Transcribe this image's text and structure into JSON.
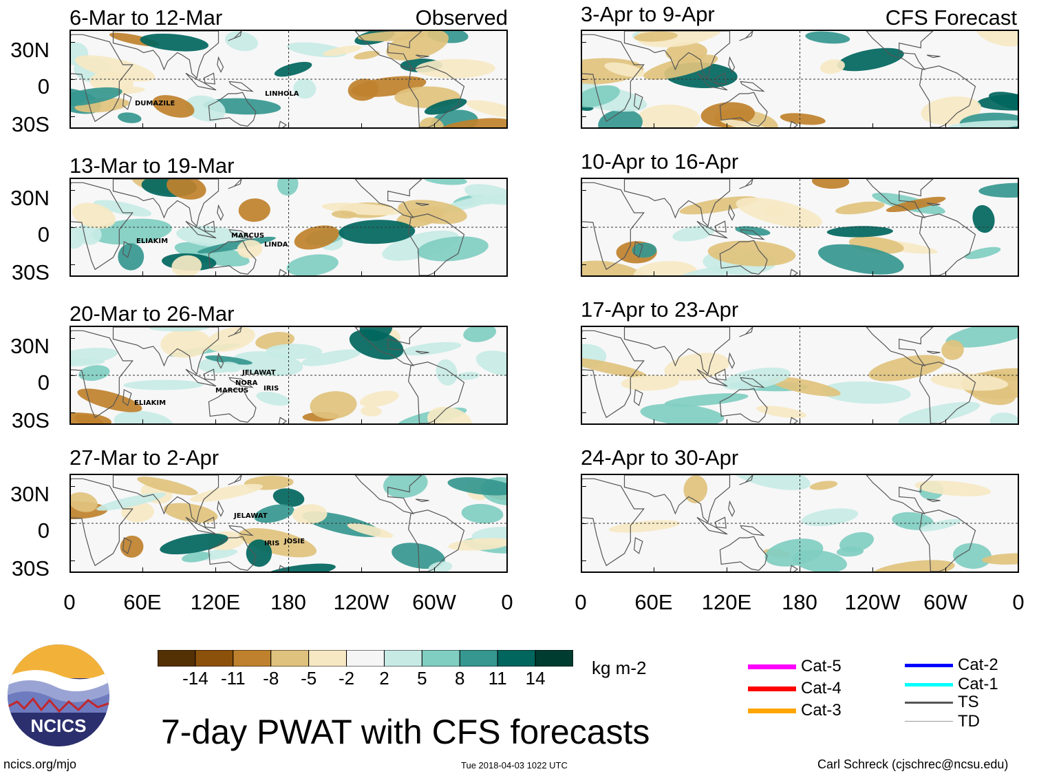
{
  "observed_label": "Observed",
  "forecast_label": "CFS Forecast",
  "lat_labels": [
    "30N",
    "0",
    "30S"
  ],
  "lon_labels": [
    "0",
    "60E",
    "120E",
    "180",
    "120W",
    "60W",
    "0"
  ],
  "panels_left": [
    {
      "title": "6-Mar to 12-Mar",
      "storms": [
        "DUMAZILE",
        "LINHOLA"
      ]
    },
    {
      "title": "13-Mar to 19-Mar",
      "storms": [
        "ELIAKIM",
        "MARCUS",
        "LINDA"
      ]
    },
    {
      "title": "20-Mar to 26-Mar",
      "storms": [
        "JELAWAT",
        "NORA",
        "MARCUS",
        "IRIS",
        "ELIAKIM"
      ]
    },
    {
      "title": "27-Mar to 2-Apr",
      "storms": [
        "JELAWAT",
        "IRIS",
        "JOSIE"
      ]
    }
  ],
  "panels_right": [
    {
      "title": "3-Apr to 9-Apr"
    },
    {
      "title": "10-Apr to 16-Apr"
    },
    {
      "title": "17-Apr to 23-Apr"
    },
    {
      "title": "24-Apr to 30-Apr"
    }
  ],
  "colorbar": {
    "units": "kg m-2",
    "ticks": [
      "-14",
      "-11",
      "-8",
      "-5",
      "-2",
      "2",
      "5",
      "8",
      "11",
      "14"
    ],
    "colors": [
      "#543005",
      "#8c510a",
      "#bf812d",
      "#dfc27d",
      "#f6e8c3",
      "#f5f5f5",
      "#c7eae5",
      "#80cdc1",
      "#35978f",
      "#01665e",
      "#003c30"
    ]
  },
  "storm_legend": [
    {
      "label": "Cat-5",
      "color": "#ff00ff"
    },
    {
      "label": "Cat-4",
      "color": "#ff0000"
    },
    {
      "label": "Cat-3",
      "color": "#ffa500"
    },
    {
      "label": "Cat-2",
      "color": "#0000ff"
    },
    {
      "label": "Cat-1",
      "color": "#00ffff"
    },
    {
      "label": "TS",
      "color": "#555555"
    },
    {
      "label": "TD",
      "color": "#999999"
    }
  ],
  "logo_text": "NCICS",
  "main_title": "7-day PWAT with CFS forecasts",
  "footer": {
    "left": "ncics.org/mjo",
    "center": "Tue 2018-04-03 1022 UTC",
    "right": "Carl Schreck (cjschrec@ncsu.edu)"
  }
}
